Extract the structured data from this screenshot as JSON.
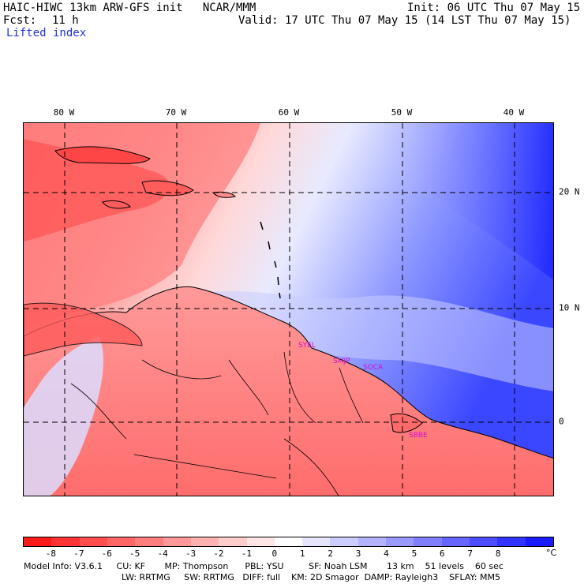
{
  "header": {
    "model_line": "HAIC-HIWC 13km ARW-GFS init   NCAR/MMM",
    "init_line": "Init: 06 UTC Thu 07 May 15",
    "fcst_label": "Fcst:",
    "fcst_value": "11 h",
    "valid_line": "Valid: 17 UTC Thu 07 May 15 (14 LST Thu 07 May 15)",
    "field_name": "Lifted index"
  },
  "map": {
    "lon_labels": [
      "80 W",
      "70 W",
      "60 W",
      "50 W",
      "40 W"
    ],
    "lat_labels": [
      "20 N",
      "10 N",
      "0"
    ],
    "stations": [
      "SYEL",
      "SMJP",
      "SOCA",
      "SBBE"
    ],
    "colors": {
      "land_outline": "#000000",
      "gridline": "#000000",
      "station": "#d010d0"
    }
  },
  "colorbar": {
    "tick_labels": [
      "-8",
      "-7",
      "-6",
      "-5",
      "-4",
      "-3",
      "-2",
      "-1",
      "0",
      "1",
      "2",
      "3",
      "4",
      "5",
      "6",
      "7",
      "8"
    ],
    "unit": "°C",
    "colors": [
      "#ff1a1a",
      "#ff3333",
      "#ff4d4d",
      "#ff6666",
      "#ff7f7f",
      "#ff9999",
      "#ffb2b2",
      "#ffcccc",
      "#ffe5e5",
      "#ffffff",
      "#e5e5ff",
      "#ccccff",
      "#b2b2ff",
      "#9999ff",
      "#7f7fff",
      "#6666ff",
      "#4d4dff",
      "#3333ff",
      "#1a1aff"
    ]
  },
  "footer": {
    "line1": "Model Info: V3.6.1     CU: KF       MP: Thompson      PBL: YSU         SF: Noah LSM       13 km    51 levels    60 sec",
    "line2": "LW: RRTMG     SW: RRTMG   DIFF: full    KM: 2D Smagor  DAMP: Rayleigh3    SFLAY: MM5"
  }
}
